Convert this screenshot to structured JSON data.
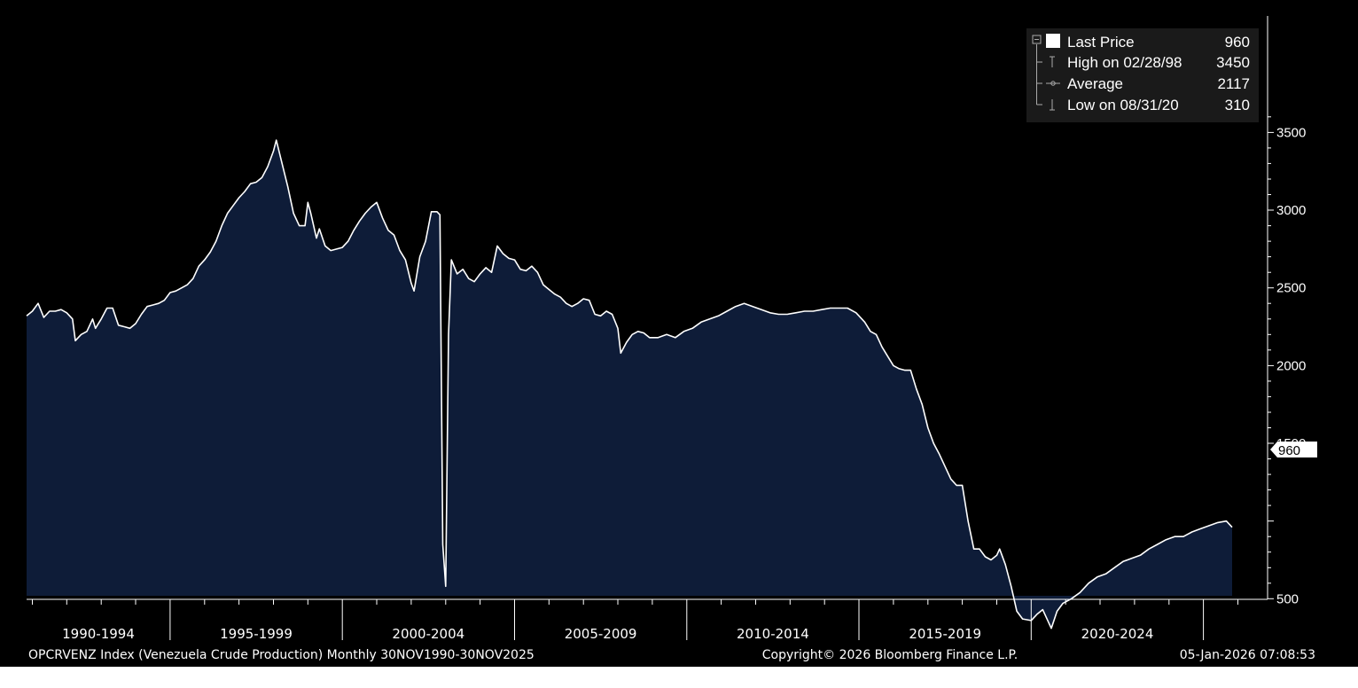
{
  "chart_data": {
    "type": "area",
    "series_name": "Last Price",
    "x_start": "1990-11",
    "x_end": "2025-11",
    "frequency": "monthly",
    "points": [
      [
        "1990-11",
        2320
      ],
      [
        "1991-01",
        2350
      ],
      [
        "1991-03",
        2400
      ],
      [
        "1991-05",
        2310
      ],
      [
        "1991-07",
        2350
      ],
      [
        "1991-09",
        2350
      ],
      [
        "1991-11",
        2360
      ],
      [
        "1992-01",
        2340
      ],
      [
        "1992-03",
        2300
      ],
      [
        "1992-04",
        2160
      ],
      [
        "1992-06",
        2200
      ],
      [
        "1992-08",
        2220
      ],
      [
        "1992-10",
        2300
      ],
      [
        "1992-11",
        2240
      ],
      [
        "1993-01",
        2300
      ],
      [
        "1993-03",
        2370
      ],
      [
        "1993-05",
        2370
      ],
      [
        "1993-07",
        2260
      ],
      [
        "1993-09",
        2250
      ],
      [
        "1993-11",
        2240
      ],
      [
        "1994-01",
        2270
      ],
      [
        "1994-03",
        2330
      ],
      [
        "1994-05",
        2380
      ],
      [
        "1994-07",
        2390
      ],
      [
        "1994-09",
        2400
      ],
      [
        "1994-11",
        2420
      ],
      [
        "1995-01",
        2470
      ],
      [
        "1995-03",
        2480
      ],
      [
        "1995-05",
        2500
      ],
      [
        "1995-07",
        2520
      ],
      [
        "1995-09",
        2560
      ],
      [
        "1995-11",
        2640
      ],
      [
        "1996-01",
        2680
      ],
      [
        "1996-03",
        2730
      ],
      [
        "1996-05",
        2800
      ],
      [
        "1996-07",
        2900
      ],
      [
        "1996-09",
        2980
      ],
      [
        "1996-11",
        3030
      ],
      [
        "1997-01",
        3080
      ],
      [
        "1997-03",
        3120
      ],
      [
        "1997-05",
        3170
      ],
      [
        "1997-07",
        3180
      ],
      [
        "1997-09",
        3210
      ],
      [
        "1997-11",
        3280
      ],
      [
        "1998-01",
        3380
      ],
      [
        "1998-02",
        3450
      ],
      [
        "1998-04",
        3300
      ],
      [
        "1998-06",
        3150
      ],
      [
        "1998-08",
        2980
      ],
      [
        "1998-10",
        2900
      ],
      [
        "1998-12",
        2900
      ],
      [
        "1999-01",
        3050
      ],
      [
        "1999-02",
        2980
      ],
      [
        "1999-04",
        2820
      ],
      [
        "1999-05",
        2880
      ],
      [
        "1999-07",
        2770
      ],
      [
        "1999-09",
        2740
      ],
      [
        "1999-11",
        2750
      ],
      [
        "2000-01",
        2760
      ],
      [
        "2000-03",
        2800
      ],
      [
        "2000-05",
        2870
      ],
      [
        "2000-07",
        2930
      ],
      [
        "2000-09",
        2980
      ],
      [
        "2000-11",
        3020
      ],
      [
        "2001-01",
        3050
      ],
      [
        "2001-03",
        2950
      ],
      [
        "2001-05",
        2870
      ],
      [
        "2001-07",
        2840
      ],
      [
        "2001-09",
        2740
      ],
      [
        "2001-11",
        2680
      ],
      [
        "2002-01",
        2530
      ],
      [
        "2002-02",
        2480
      ],
      [
        "2002-04",
        2700
      ],
      [
        "2002-06",
        2800
      ],
      [
        "2002-08",
        2990
      ],
      [
        "2002-10",
        2990
      ],
      [
        "2002-11",
        2970
      ],
      [
        "2002-12",
        850
      ],
      [
        "2003-01",
        580
      ],
      [
        "2003-02",
        2200
      ],
      [
        "2003-03",
        2680
      ],
      [
        "2003-05",
        2590
      ],
      [
        "2003-07",
        2620
      ],
      [
        "2003-09",
        2560
      ],
      [
        "2003-11",
        2540
      ],
      [
        "2004-01",
        2590
      ],
      [
        "2004-03",
        2630
      ],
      [
        "2004-05",
        2600
      ],
      [
        "2004-07",
        2770
      ],
      [
        "2004-09",
        2720
      ],
      [
        "2004-11",
        2690
      ],
      [
        "2005-01",
        2680
      ],
      [
        "2005-03",
        2620
      ],
      [
        "2005-05",
        2610
      ],
      [
        "2005-07",
        2640
      ],
      [
        "2005-09",
        2600
      ],
      [
        "2005-11",
        2520
      ],
      [
        "2006-01",
        2490
      ],
      [
        "2006-03",
        2460
      ],
      [
        "2006-05",
        2440
      ],
      [
        "2006-07",
        2400
      ],
      [
        "2006-09",
        2380
      ],
      [
        "2006-11",
        2400
      ],
      [
        "2007-01",
        2430
      ],
      [
        "2007-03",
        2420
      ],
      [
        "2007-05",
        2330
      ],
      [
        "2007-07",
        2320
      ],
      [
        "2007-09",
        2350
      ],
      [
        "2007-11",
        2330
      ],
      [
        "2008-01",
        2240
      ],
      [
        "2008-02",
        2080
      ],
      [
        "2008-04",
        2150
      ],
      [
        "2008-06",
        2200
      ],
      [
        "2008-08",
        2220
      ],
      [
        "2008-10",
        2210
      ],
      [
        "2008-12",
        2180
      ],
      [
        "2009-03",
        2180
      ],
      [
        "2009-06",
        2200
      ],
      [
        "2009-09",
        2180
      ],
      [
        "2009-12",
        2220
      ],
      [
        "2010-03",
        2240
      ],
      [
        "2010-06",
        2280
      ],
      [
        "2010-09",
        2300
      ],
      [
        "2010-12",
        2320
      ],
      [
        "2011-03",
        2350
      ],
      [
        "2011-06",
        2380
      ],
      [
        "2011-09",
        2400
      ],
      [
        "2011-12",
        2380
      ],
      [
        "2012-03",
        2360
      ],
      [
        "2012-06",
        2340
      ],
      [
        "2012-09",
        2330
      ],
      [
        "2012-12",
        2330
      ],
      [
        "2013-03",
        2340
      ],
      [
        "2013-06",
        2350
      ],
      [
        "2013-09",
        2350
      ],
      [
        "2013-12",
        2360
      ],
      [
        "2014-03",
        2370
      ],
      [
        "2014-06",
        2370
      ],
      [
        "2014-09",
        2370
      ],
      [
        "2014-12",
        2340
      ],
      [
        "2015-03",
        2280
      ],
      [
        "2015-05",
        2220
      ],
      [
        "2015-07",
        2200
      ],
      [
        "2015-09",
        2120
      ],
      [
        "2015-11",
        2060
      ],
      [
        "2016-01",
        2000
      ],
      [
        "2016-03",
        1980
      ],
      [
        "2016-05",
        1970
      ],
      [
        "2016-07",
        1970
      ],
      [
        "2016-09",
        1850
      ],
      [
        "2016-11",
        1750
      ],
      [
        "2017-01",
        1600
      ],
      [
        "2017-03",
        1500
      ],
      [
        "2017-05",
        1430
      ],
      [
        "2017-07",
        1350
      ],
      [
        "2017-09",
        1270
      ],
      [
        "2017-11",
        1230
      ],
      [
        "2018-01",
        1230
      ],
      [
        "2018-03",
        1000
      ],
      [
        "2018-05",
        820
      ],
      [
        "2018-07",
        820
      ],
      [
        "2018-09",
        770
      ],
      [
        "2018-11",
        750
      ],
      [
        "2019-01",
        780
      ],
      [
        "2019-02",
        820
      ],
      [
        "2019-04",
        720
      ],
      [
        "2019-06",
        580
      ],
      [
        "2019-08",
        420
      ],
      [
        "2019-10",
        370
      ],
      [
        "2020-01",
        360
      ],
      [
        "2020-03",
        400
      ],
      [
        "2020-05",
        430
      ],
      [
        "2020-08",
        310
      ],
      [
        "2020-10",
        420
      ],
      [
        "2020-12",
        470
      ],
      [
        "2021-03",
        500
      ],
      [
        "2021-06",
        540
      ],
      [
        "2021-09",
        600
      ],
      [
        "2021-12",
        640
      ],
      [
        "2022-03",
        660
      ],
      [
        "2022-06",
        700
      ],
      [
        "2022-09",
        740
      ],
      [
        "2022-12",
        760
      ],
      [
        "2023-03",
        780
      ],
      [
        "2023-06",
        820
      ],
      [
        "2023-09",
        850
      ],
      [
        "2023-12",
        880
      ],
      [
        "2024-03",
        900
      ],
      [
        "2024-06",
        900
      ],
      [
        "2024-09",
        930
      ],
      [
        "2024-12",
        950
      ],
      [
        "2025-03",
        970
      ],
      [
        "2025-06",
        990
      ],
      [
        "2025-09",
        1000
      ],
      [
        "2025-11",
        960
      ]
    ],
    "y_axis": {
      "position": "right",
      "ticks": [
        500,
        1000,
        1500,
        2000,
        2500,
        3000,
        3500
      ],
      "labeled_ticks": [
        "500",
        "1500",
        "2000",
        "2500",
        "3000",
        "3500"
      ]
    },
    "x_axis": {
      "categories": [
        "1990-1994",
        "1995-1999",
        "2000-2004",
        "2005-2009",
        "2010-2014",
        "2015-2019",
        "2020-2024"
      ]
    },
    "last_value_label": "960",
    "legend": {
      "placement": "top-right",
      "entries": [
        {
          "label": "Last Price",
          "value": "960"
        },
        {
          "label": "High on 02/28/98",
          "value": "3450"
        },
        {
          "label": "Average",
          "value": "2117"
        },
        {
          "label": "Low on 08/31/20",
          "value": "310"
        }
      ]
    },
    "grid": false,
    "colors": {
      "background": "#000000",
      "fill": "#0e1c38",
      "line": "#ffffff",
      "text": "#ffffff"
    }
  },
  "footer": {
    "left": "OPCRVENZ Index (Venezuela Crude Production) Monthly 30NOV1990-30NOV2025",
    "center": "Copyright© 2026 Bloomberg Finance L.P.",
    "right": "05-Jan-2026 07:08:53"
  }
}
